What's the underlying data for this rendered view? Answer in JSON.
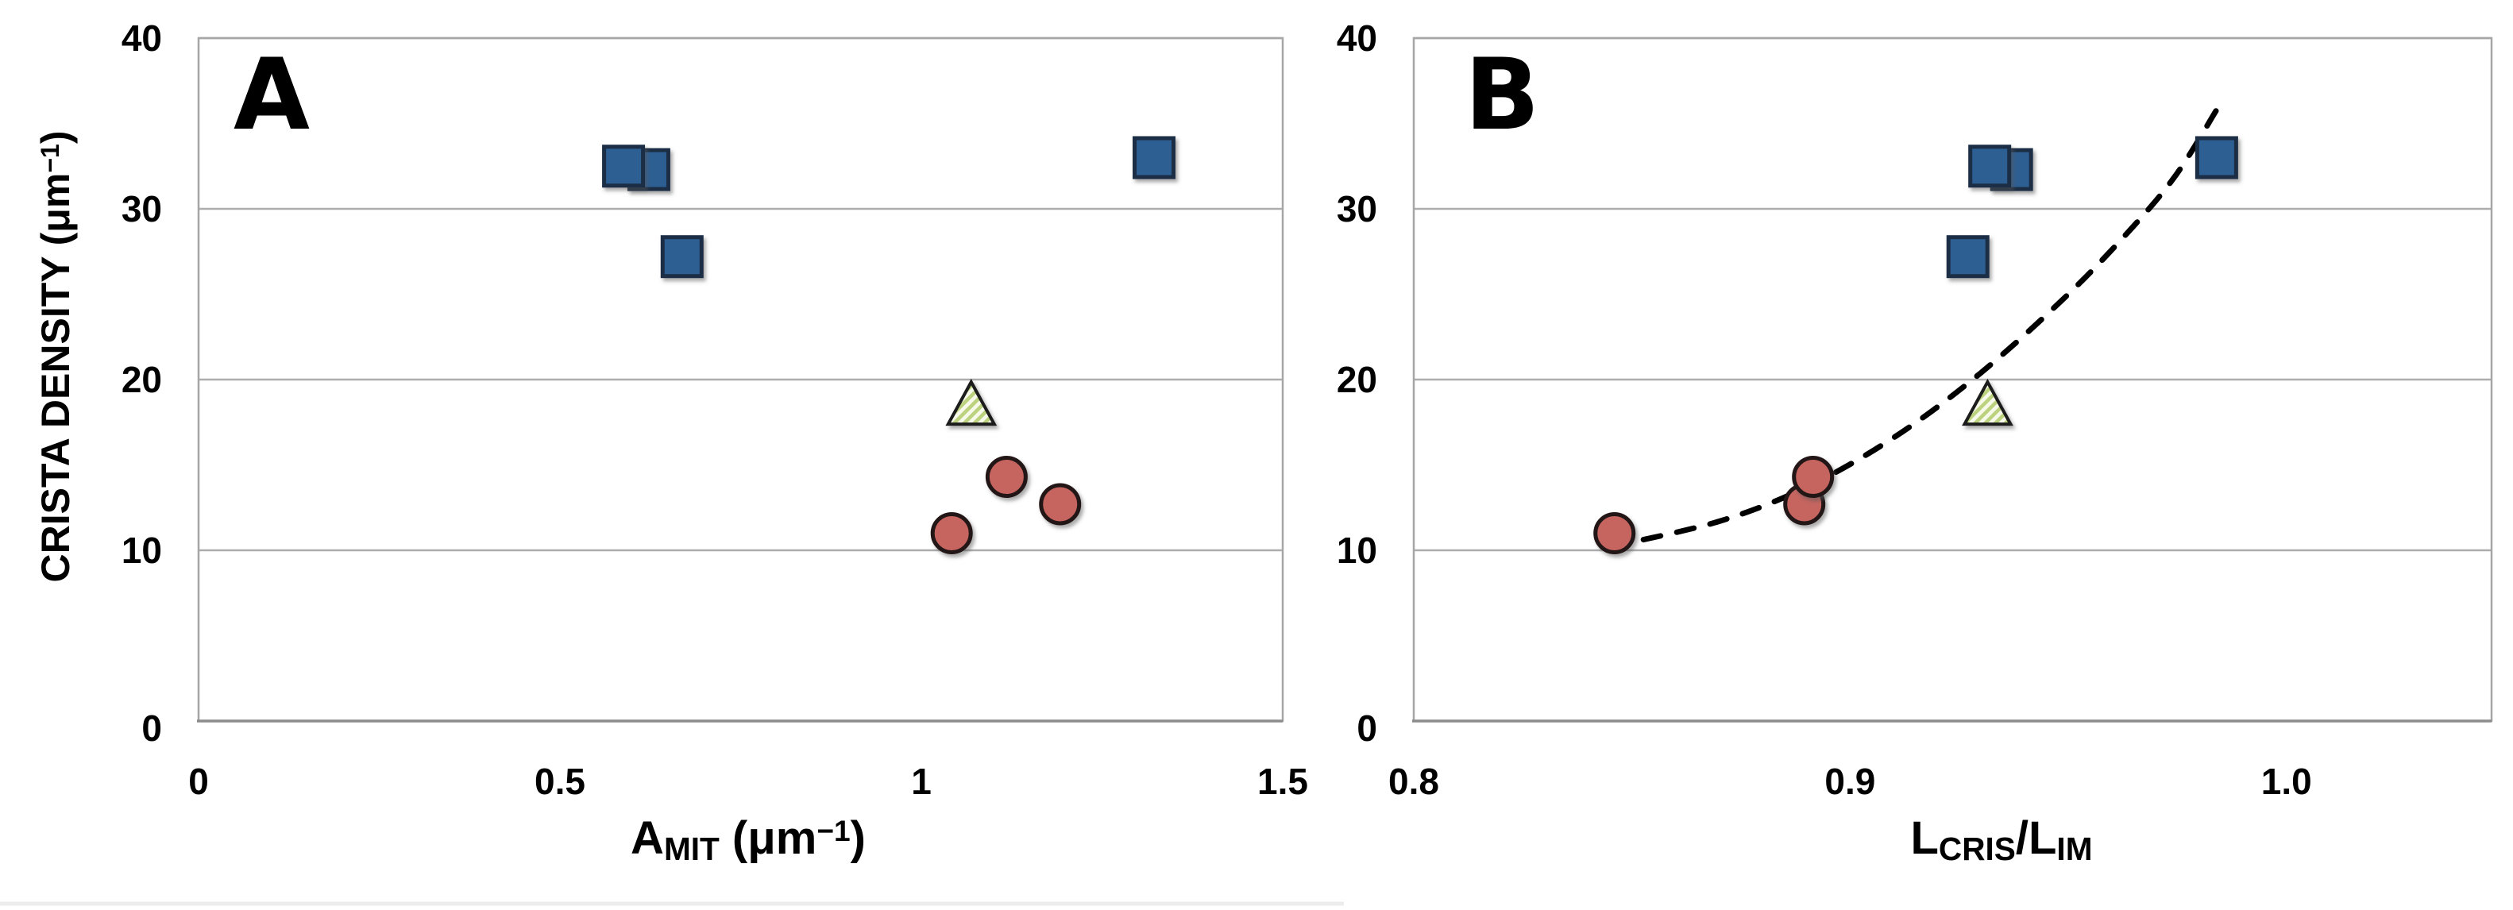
{
  "figure": {
    "ylabel_parts": [
      {
        "t": "CRISTA DENSITY  ("
      },
      {
        "t": "μm"
      },
      {
        "t": "−1",
        "sup": true
      },
      {
        "t": ")"
      }
    ]
  },
  "colors": {
    "background": "#FFFFFF",
    "grid": "#ADADAD",
    "plot_border": "#A6A6A6",
    "axis_line": "#8C8C8C",
    "text": "#000000",
    "square_fill": "#2E5E92",
    "square_stroke": "#1B2D44",
    "circle_fill": "#C66560",
    "circle_stroke": "#241715",
    "triangle_bg": "#F7FAEB",
    "triangle_stripe": "#BCD27E",
    "triangle_stroke": "#1A1A1A",
    "trend": "#000000",
    "footer_line": "#ECECEC"
  },
  "chart_data": [
    {
      "id": "panel-a",
      "type": "scatter",
      "panel_label": "A",
      "xlabel_parts": [
        {
          "t": "A"
        },
        {
          "t": "MIT",
          "sub": true
        },
        {
          "t": " (μm"
        },
        {
          "t": "−1",
          "sup": true
        },
        {
          "t": ")"
        }
      ],
      "xlim": [
        0,
        1.5
      ],
      "ylim": [
        0,
        40
      ],
      "grid": "horizontal",
      "legend": "none",
      "xticks": [
        {
          "v": 0,
          "label": "0"
        },
        {
          "v": 0.5,
          "label": "0.5"
        },
        {
          "v": 1,
          "label": "1"
        },
        {
          "v": 1.5,
          "label": "1.5"
        }
      ],
      "yticks": [
        {
          "v": 0,
          "label": "0"
        },
        {
          "v": 10,
          "label": "10"
        },
        {
          "v": 20,
          "label": "20"
        },
        {
          "v": 30,
          "label": "30"
        },
        {
          "v": 40,
          "label": "40"
        }
      ],
      "series": [
        {
          "name": "squares",
          "marker": "square",
          "points": [
            [
              0.623,
              32.3
            ],
            [
              0.588,
              32.5
            ],
            [
              0.669,
              27.2
            ],
            [
              1.322,
              33.0
            ]
          ]
        },
        {
          "name": "triangle",
          "marker": "triangle-hatched",
          "points": [
            [
              1.069,
              18.6
            ]
          ]
        },
        {
          "name": "circles",
          "marker": "circle",
          "points": [
            [
              1.042,
              11.0
            ],
            [
              1.118,
              14.3
            ],
            [
              1.192,
              12.7
            ]
          ]
        }
      ]
    },
    {
      "id": "panel-b",
      "type": "scatter",
      "panel_label": "B",
      "xlabel_parts": [
        {
          "t": "L"
        },
        {
          "t": "CRIS",
          "sub": true
        },
        {
          "t": "/L"
        },
        {
          "t": "IM",
          "sub": true
        }
      ],
      "xlim": [
        0.8,
        1.047
      ],
      "ylim": [
        0,
        40
      ],
      "grid": "horizontal",
      "legend": "none",
      "xticks": [
        {
          "v": 0.8,
          "label": "0.8"
        },
        {
          "v": 0.9,
          "label": "0.9"
        },
        {
          "v": 1.0,
          "label": "1.0"
        }
      ],
      "yticks": [
        {
          "v": 0,
          "label": "0"
        },
        {
          "v": 10,
          "label": "10"
        },
        {
          "v": 20,
          "label": "20"
        },
        {
          "v": 30,
          "label": "30"
        },
        {
          "v": 40,
          "label": "40"
        }
      ],
      "trend": {
        "style": "dashed",
        "points": [
          [
            0.845,
            10.2
          ],
          [
            0.87,
            11.7
          ],
          [
            0.89,
            13.7
          ],
          [
            0.91,
            16.6
          ],
          [
            0.93,
            20.4
          ],
          [
            0.95,
            25.0
          ],
          [
            0.965,
            29.0
          ],
          [
            0.975,
            32.1
          ],
          [
            0.984,
            35.8
          ]
        ]
      },
      "series": [
        {
          "name": "squares",
          "marker": "square",
          "points": [
            [
              0.937,
              32.3
            ],
            [
              0.932,
              32.5
            ],
            [
              0.927,
              27.2
            ],
            [
              0.984,
              33.0
            ]
          ]
        },
        {
          "name": "triangle",
          "marker": "triangle-hatched",
          "points": [
            [
              0.9315,
              18.6
            ]
          ]
        },
        {
          "name": "circles",
          "marker": "circle",
          "points": [
            [
              0.846,
              11.0
            ],
            [
              0.8895,
              12.7
            ],
            [
              0.8915,
              14.3
            ]
          ]
        }
      ]
    }
  ]
}
